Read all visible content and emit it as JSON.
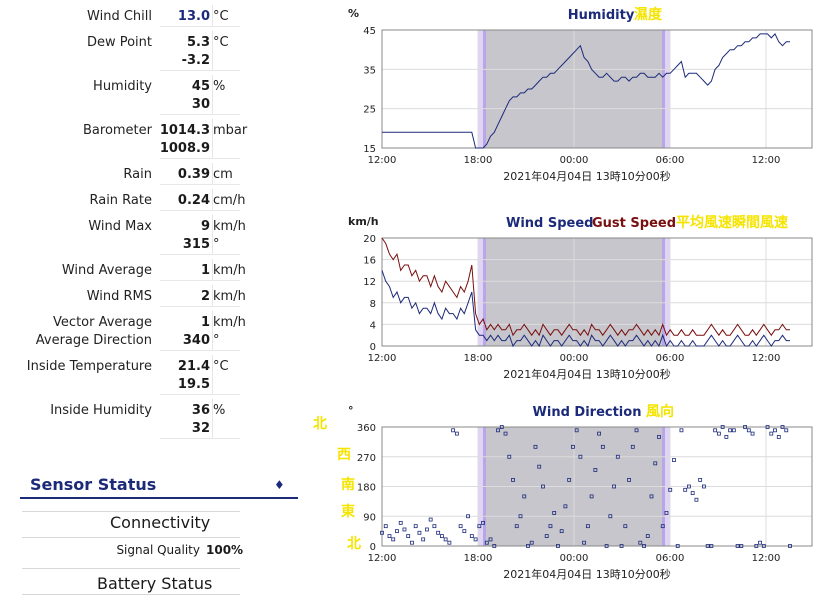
{
  "sensors": [
    {
      "label": "Wind Chill",
      "values": [
        "13.0"
      ],
      "unit": "°C",
      "blue": true
    },
    {
      "label": "Dew Point",
      "values": [
        "5.3",
        "-3.2"
      ],
      "unit": "°C"
    },
    {
      "label": "Humidity",
      "values": [
        "45",
        "30"
      ],
      "unit": "%"
    },
    {
      "label": "Barometer",
      "values": [
        "1014.3",
        "1008.9"
      ],
      "unit": "mbar"
    },
    {
      "label": "Rain",
      "values": [
        "0.39"
      ],
      "unit": "cm"
    },
    {
      "label": "Rain Rate",
      "values": [
        "0.24"
      ],
      "unit": "cm/h"
    },
    {
      "label": "Wind Max",
      "values": [
        "9",
        "315"
      ],
      "unit": "km/h",
      "unit2": "°"
    },
    {
      "label": "Wind Average",
      "values": [
        "1"
      ],
      "unit": "km/h"
    },
    {
      "label": "Wind RMS",
      "values": [
        "2"
      ],
      "unit": "km/h"
    },
    {
      "label": "Vector Average",
      "label2": "Average Direction",
      "values": [
        "1",
        "340"
      ],
      "unit": "km/h",
      "unit2": "°"
    },
    {
      "label": "Inside Temperature",
      "values": [
        "21.4",
        "19.5"
      ],
      "unit": "°C"
    },
    {
      "label": "Inside Humidity",
      "values": [
        "36",
        "32"
      ],
      "unit": "%"
    }
  ],
  "sensor_status": {
    "title": "Sensor Status",
    "connectivity": "Connectivity",
    "signal_label": "Signal Quality",
    "signal_value": "100%",
    "battery": "Battery Status"
  },
  "direction_legend": [
    "北",
    "西",
    "南",
    "東",
    "北"
  ],
  "colors": {
    "navy": "#1c2a7a",
    "maroon": "#7a0f0f",
    "yellow": "#f5e400",
    "shade": "#c6c6cc",
    "shade_edge": "#e0d4f4"
  },
  "chart_data": [
    {
      "type": "line",
      "title": "Humidity",
      "title_cjk": "濕度",
      "ylabel": "%",
      "ylim": [
        15,
        45
      ],
      "yticks": [
        15,
        25,
        35,
        45
      ],
      "xticks": [
        "12:00",
        "18:00",
        "00:00",
        "06:00",
        "12:00"
      ],
      "timestamp": "2021年04月04日 13時10分00秒",
      "series": [
        {
          "values": [
            19,
            19,
            19,
            19,
            19,
            19,
            19,
            19,
            19,
            19,
            19,
            19,
            19,
            19,
            19,
            19,
            19,
            19,
            19,
            19,
            19,
            19,
            19,
            19,
            19,
            15,
            15,
            15,
            16,
            18,
            19,
            21,
            23,
            25,
            27,
            28,
            28,
            29,
            29,
            30,
            30,
            31,
            32,
            33,
            33,
            34,
            34,
            35,
            36,
            37,
            38,
            39,
            40,
            41,
            38,
            37,
            35,
            34,
            33,
            33,
            34,
            33,
            32,
            32,
            33,
            33,
            32,
            33,
            33,
            34,
            34,
            33,
            33,
            33,
            34,
            33,
            34,
            34,
            35,
            36,
            37,
            33,
            34,
            34,
            34,
            33,
            32,
            31,
            32,
            35,
            36,
            38,
            39,
            40,
            40,
            41,
            41,
            42,
            42,
            43,
            43,
            44,
            44,
            44,
            43,
            44,
            42,
            41,
            42,
            42
          ]
        }
      ]
    },
    {
      "type": "line",
      "title": "Wind Speed",
      "title2": "Gust Speed",
      "title_cjk": "平均風速瞬間風速",
      "ylabel": "km/h",
      "ylim": [
        0,
        20
      ],
      "yticks": [
        0,
        4,
        8,
        12,
        16,
        20
      ],
      "xticks": [
        "12:00",
        "18:00",
        "00:00",
        "06:00",
        "12:00"
      ],
      "timestamp": "2021年04月04日 13時10分00秒",
      "series": [
        {
          "name": "Wind Speed",
          "values": [
            14,
            12,
            11,
            9,
            10,
            8,
            9,
            9,
            7,
            8,
            6,
            7,
            7,
            6,
            8,
            6,
            5,
            7,
            6,
            6,
            5,
            7,
            6,
            8,
            10,
            3,
            2,
            2,
            1,
            2,
            1,
            2,
            1,
            1,
            2,
            0,
            1,
            1,
            2,
            1,
            0,
            1,
            0,
            2,
            1,
            0,
            1,
            1,
            0,
            1,
            2,
            1,
            1,
            0,
            1,
            0,
            2,
            1,
            1,
            0,
            1,
            2,
            1,
            0,
            1,
            0,
            1,
            1,
            2,
            1,
            0,
            1,
            0,
            1,
            0,
            2,
            0,
            1,
            0,
            0,
            1,
            0,
            0,
            1,
            0,
            0,
            0,
            1,
            2,
            1,
            0,
            1,
            0,
            0,
            1,
            2,
            1,
            0,
            0,
            1,
            0,
            1,
            2,
            1,
            0,
            1,
            1,
            2,
            1,
            1
          ]
        },
        {
          "name": "Gust Speed",
          "values": [
            20,
            19,
            17,
            16,
            17,
            14,
            15,
            15,
            13,
            14,
            12,
            13,
            13,
            11,
            13,
            11,
            10,
            12,
            11,
            10,
            9,
            11,
            10,
            12,
            15,
            6,
            4,
            5,
            3,
            4,
            3,
            4,
            3,
            3,
            4,
            2,
            3,
            3,
            4,
            3,
            2,
            3,
            2,
            4,
            3,
            2,
            3,
            3,
            2,
            3,
            4,
            3,
            3,
            2,
            3,
            2,
            4,
            3,
            3,
            2,
            3,
            4,
            3,
            2,
            3,
            2,
            3,
            3,
            4,
            3,
            2,
            3,
            2,
            3,
            2,
            4,
            2,
            3,
            2,
            2,
            3,
            2,
            2,
            3,
            2,
            2,
            2,
            3,
            4,
            3,
            2,
            3,
            2,
            2,
            3,
            4,
            3,
            2,
            2,
            3,
            2,
            3,
            4,
            3,
            2,
            3,
            3,
            4,
            3,
            3
          ]
        }
      ]
    },
    {
      "type": "scatter",
      "title": "Wind Direction",
      "title_cjk": "風向",
      "ylabel": "°",
      "ylim": [
        0,
        360
      ],
      "yticks": [
        0,
        90,
        180,
        270,
        360
      ],
      "xticks": [
        "12:00",
        "18:00",
        "00:00",
        "06:00",
        "12:00"
      ],
      "timestamp": "2021年04月04日 13時10分00秒",
      "series": [
        {
          "values": [
            40,
            60,
            30,
            20,
            45,
            70,
            50,
            30,
            10,
            60,
            40,
            20,
            50,
            80,
            60,
            40,
            30,
            20,
            10,
            350,
            340,
            60,
            45,
            90,
            30,
            20,
            60,
            70,
            10,
            20,
            0,
            350,
            360,
            340,
            270,
            200,
            60,
            90,
            150,
            0,
            10,
            300,
            240,
            180,
            30,
            60,
            100,
            0,
            45,
            120,
            200,
            300,
            350,
            270,
            10,
            60,
            150,
            230,
            340,
            300,
            0,
            90,
            180,
            270,
            0,
            60,
            200,
            300,
            350,
            10,
            0,
            30,
            150,
            250,
            330,
            60,
            100,
            170,
            260,
            0,
            350,
            170,
            180,
            160,
            140,
            200,
            180,
            0,
            0,
            350,
            340,
            360,
            330,
            350,
            350,
            0,
            0,
            360,
            350,
            340,
            0,
            10,
            0,
            360,
            340,
            350,
            330,
            360,
            350,
            0
          ]
        }
      ]
    }
  ]
}
